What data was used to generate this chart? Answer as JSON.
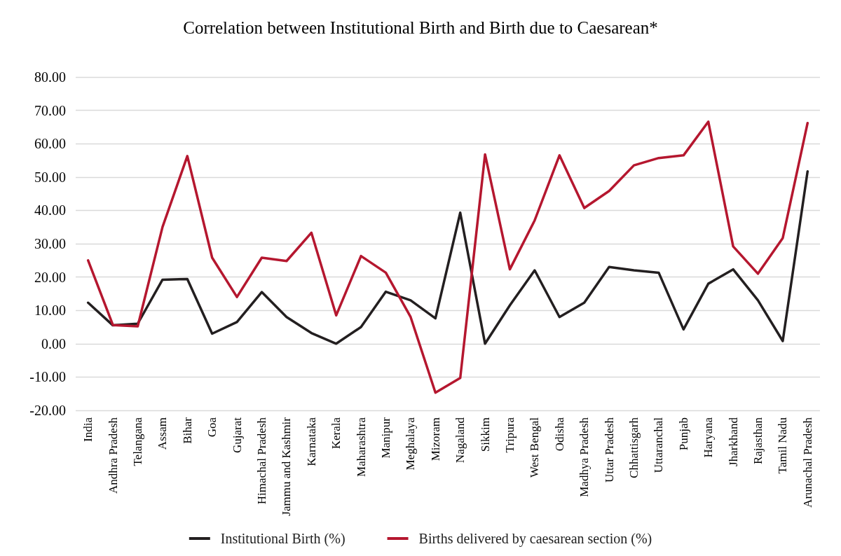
{
  "chart_data": {
    "type": "line",
    "title": "Correlation between Institutional Birth and Birth due to Caesarean*",
    "categories": [
      "India",
      "Andhra Pradesh",
      "Telangana",
      "Assam",
      "Bihar",
      "Goa",
      "Gujarat",
      "Himachal Pradesh",
      "Jammu and Kashmir",
      "Karnataka",
      "Kerala",
      "Maharashtra",
      "Manipur",
      "Meghalaya",
      "Mizoram",
      "Nagaland",
      "Sikkim",
      "Tripura",
      "West Bengal",
      "Odisha",
      "Madhya Pradesh",
      "Uttar Pradesh",
      "Chhattisgarh",
      "Uttaranchal",
      "Punjab",
      "Haryana",
      "Jharkhand",
      "Rajasthan",
      "Tamil Nadu",
      "Arunachal Pradesh"
    ],
    "series": [
      {
        "name": "Institutional Birth (%)",
        "color": "#231f20",
        "values": [
          12.3,
          5.5,
          6,
          19.2,
          19.4,
          3,
          6.5,
          15.5,
          8,
          3.2,
          0,
          5,
          15.6,
          13,
          7.6,
          39.3,
          0,
          11.5,
          22,
          8,
          12.3,
          23,
          22,
          21.3,
          4.3,
          18,
          22.3,
          13,
          0.8,
          51.7
        ]
      },
      {
        "name": "Births delivered by caesarean section (%)",
        "color": "#b5172f",
        "values": [
          25,
          5.6,
          5.2,
          35,
          56.3,
          25.8,
          14,
          25.8,
          24.8,
          33.3,
          8.5,
          26.3,
          21.3,
          8,
          -14.7,
          -10.3,
          56.8,
          22.3,
          37,
          56.5,
          40.7,
          45.8,
          53.5,
          55.7,
          56.5,
          66.6,
          29.2,
          21,
          31.7,
          66.2
        ]
      }
    ],
    "ylim": [
      -20,
      80
    ],
    "yticks": [
      {
        "value": -20,
        "label": "-20.00"
      },
      {
        "value": -10,
        "label": "-10.00"
      },
      {
        "value": 0,
        "label": "0.00"
      },
      {
        "value": 10,
        "label": "10.00"
      },
      {
        "value": 20,
        "label": "20.00"
      },
      {
        "value": 30,
        "label": "30.00"
      },
      {
        "value": 40,
        "label": "40.00"
      },
      {
        "value": 50,
        "label": "50.00"
      },
      {
        "value": 60,
        "label": "60.00"
      },
      {
        "value": 70,
        "label": "70.00"
      },
      {
        "value": 80,
        "label": "80.00"
      }
    ],
    "grid": "y",
    "legend": "bottom",
    "marker": "none",
    "line_style": "solid"
  }
}
